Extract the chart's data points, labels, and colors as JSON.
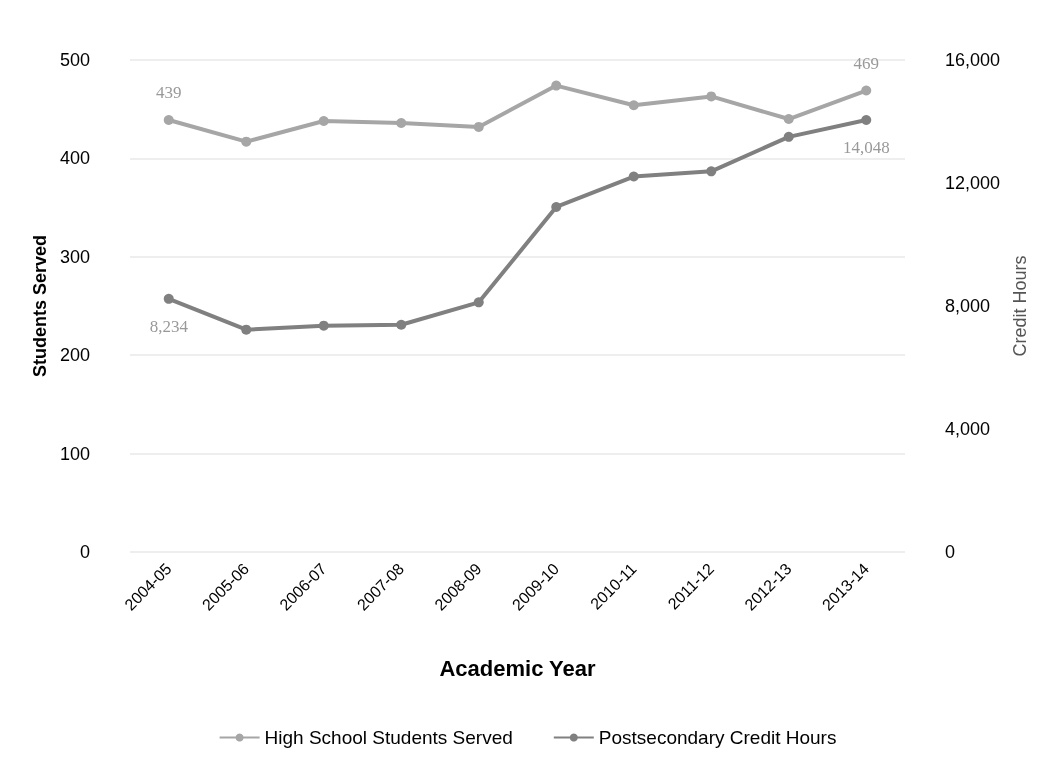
{
  "chart_data": {
    "type": "line",
    "xlabel": "Academic Year",
    "ylabel": "Students Served",
    "y2label": "Credit Hours",
    "categories": [
      "2004-05",
      "2005-06",
      "2006-07",
      "2007-08",
      "2008-09",
      "2009-10",
      "2010-11",
      "2011-12",
      "2012-13",
      "2013-14"
    ],
    "series": [
      {
        "name": "High School Students Served",
        "color": "#a6a6a6",
        "values": [
          439,
          417,
          438,
          436,
          432,
          474,
          454,
          463,
          440,
          469
        ],
        "value_labels": [
          "439",
          null,
          null,
          null,
          null,
          null,
          null,
          null,
          null,
          "469"
        ]
      },
      {
        "name": "Postsecondary Credit Hours",
        "color": "#808080",
        "axis": "y2",
        "values": [
          8234,
          7230,
          7360,
          7390,
          8120,
          11220,
          12210,
          12380,
          13500,
          14048
        ],
        "value_labels": [
          "8,234",
          null,
          null,
          null,
          null,
          null,
          null,
          null,
          null,
          "14,048"
        ]
      }
    ],
    "ylim": [
      0,
      500
    ],
    "yticks": [
      0,
      100,
      200,
      300,
      400,
      500
    ],
    "y2lim": [
      0,
      16000
    ],
    "y2ticks": [
      {
        "value": 0,
        "label": "0"
      },
      {
        "value": 4000,
        "label": "4,000"
      },
      {
        "value": 8000,
        "label": "8,000"
      },
      {
        "value": 12000,
        "label": "12,000"
      },
      {
        "value": 16000,
        "label": "16,000"
      }
    ],
    "grid": "y",
    "legend": "bottom",
    "marker": "circle",
    "line_style": "solid"
  }
}
